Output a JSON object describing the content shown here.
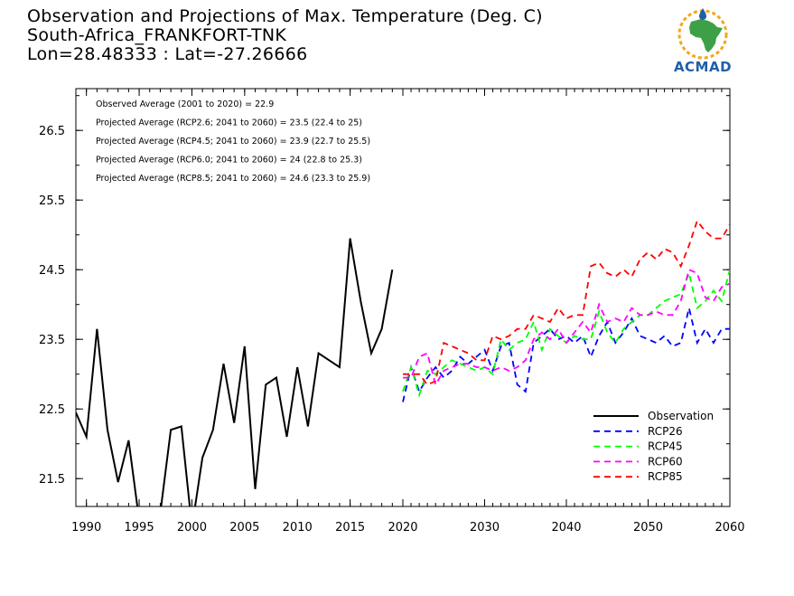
{
  "title": {
    "line1": "Observation and Projections of Max. Temperature (Deg. C)",
    "line2": "South-Africa_FRANKFORT-TNK",
    "line3": "Lon=28.48333 : Lat=-27.26666"
  },
  "logo": {
    "text": "ACMAD",
    "icon": "africa-map-logo-icon"
  },
  "stats": [
    "Observed Average (2001 to 2020) = 22.9",
    "Projected Average (RCP2.6; 2041 to 2060) = 23.5 (22.4 to 25)",
    "Projected Average (RCP4.5; 2041 to 2060) = 23.9 (22.7 to 25.5)",
    "Projected Average (RCP6.0; 2041 to 2060) = 24 (22.8 to 25.3)",
    "Projected Average (RCP8.5; 2041 to 2060) = 24.6 (23.3 to 25.9)"
  ],
  "chart_data": {
    "type": "line",
    "ylim": [
      21.1,
      27.1
    ],
    "yticks": [
      "21.5",
      "22.5",
      "23.5",
      "24.5",
      "25.5",
      "26.5"
    ],
    "grid": false,
    "legend_position": "bottom-right",
    "x_axis_segments": [
      {
        "range": [
          1989,
          2020
        ],
        "ticks": [
          "1990",
          "1995",
          "2000",
          "2005",
          "2010",
          "2015",
          "2020"
        ]
      },
      {
        "range": [
          2020,
          2060
        ],
        "ticks": [
          "2030",
          "2040",
          "2050",
          "2060"
        ]
      }
    ],
    "series": [
      {
        "name": "Observation",
        "color": "#000000",
        "dash": "solid",
        "x": [
          1989,
          1990,
          1991,
          1992,
          1993,
          1994,
          1995,
          1996,
          1997,
          1998,
          1999,
          2000,
          2001,
          2002,
          2003,
          2004,
          2005,
          2006,
          2007,
          2008,
          2009,
          2010,
          2011,
          2012,
          2013,
          2014,
          2015,
          2016,
          2017,
          2018,
          2019
        ],
        "y": [
          22.45,
          22.1,
          23.65,
          22.2,
          21.45,
          22.05,
          20.9,
          20.8,
          21.0,
          22.2,
          22.25,
          20.8,
          21.8,
          22.2,
          23.15,
          22.3,
          23.4,
          21.35,
          22.85,
          22.95,
          22.1,
          23.1,
          22.25,
          23.3,
          23.2,
          23.1,
          24.95,
          24.05,
          23.3,
          23.65,
          24.5
        ]
      },
      {
        "name": "RCP26",
        "color": "#0000ff",
        "dash": "dashed",
        "x": [
          2020,
          2021,
          2022,
          2023,
          2024,
          2025,
          2026,
          2027,
          2028,
          2029,
          2030,
          2031,
          2032,
          2033,
          2034,
          2035,
          2036,
          2037,
          2038,
          2039,
          2040,
          2041,
          2042,
          2043,
          2044,
          2045,
          2046,
          2047,
          2048,
          2049,
          2050,
          2051,
          2052,
          2053,
          2054,
          2055,
          2056,
          2057,
          2058,
          2059,
          2060
        ],
        "y": [
          22.6,
          23.1,
          22.75,
          22.95,
          23.1,
          22.95,
          23.05,
          23.25,
          23.15,
          23.25,
          23.35,
          23.05,
          23.4,
          23.45,
          22.85,
          22.75,
          23.45,
          23.55,
          23.65,
          23.5,
          23.55,
          23.45,
          23.55,
          23.25,
          23.55,
          23.75,
          23.45,
          23.6,
          23.8,
          23.55,
          23.5,
          23.45,
          23.55,
          23.4,
          23.45,
          23.95,
          23.45,
          23.65,
          23.45,
          23.65,
          23.65
        ]
      },
      {
        "name": "RCP45",
        "color": "#00ff00",
        "dash": "dashed",
        "x": [
          2020,
          2021,
          2022,
          2023,
          2024,
          2025,
          2026,
          2027,
          2028,
          2029,
          2030,
          2031,
          2032,
          2033,
          2034,
          2035,
          2036,
          2037,
          2038,
          2039,
          2040,
          2041,
          2042,
          2043,
          2044,
          2045,
          2046,
          2047,
          2048,
          2049,
          2050,
          2051,
          2052,
          2053,
          2054,
          2055,
          2056,
          2057,
          2058,
          2059,
          2060
        ],
        "y": [
          22.75,
          23.1,
          22.7,
          23.05,
          23.0,
          23.1,
          23.2,
          23.15,
          23.1,
          23.05,
          23.1,
          23.0,
          23.5,
          23.35,
          23.45,
          23.5,
          23.75,
          23.35,
          23.65,
          23.55,
          23.45,
          23.55,
          23.5,
          23.5,
          23.9,
          23.6,
          23.45,
          23.65,
          23.75,
          23.85,
          23.85,
          23.95,
          24.05,
          24.1,
          24.15,
          24.45,
          23.95,
          24.05,
          24.2,
          24.05,
          24.5
        ]
      },
      {
        "name": "RCP60",
        "color": "#ff00ff",
        "dash": "dashed",
        "x": [
          2020,
          2021,
          2022,
          2023,
          2024,
          2025,
          2026,
          2027,
          2028,
          2029,
          2030,
          2031,
          2032,
          2033,
          2034,
          2035,
          2036,
          2037,
          2038,
          2039,
          2040,
          2041,
          2042,
          2043,
          2044,
          2045,
          2046,
          2047,
          2048,
          2049,
          2050,
          2051,
          2052,
          2053,
          2054,
          2055,
          2056,
          2057,
          2058,
          2059,
          2060
        ],
        "y": [
          22.95,
          22.95,
          23.25,
          23.3,
          22.85,
          23.05,
          23.1,
          23.15,
          23.15,
          23.1,
          23.1,
          23.05,
          23.1,
          23.05,
          23.1,
          23.2,
          23.5,
          23.6,
          23.5,
          23.65,
          23.45,
          23.6,
          23.75,
          23.6,
          24.0,
          23.75,
          23.8,
          23.75,
          23.95,
          23.85,
          23.85,
          23.9,
          23.85,
          23.85,
          24.05,
          24.5,
          24.45,
          24.1,
          24.05,
          24.25,
          24.3
        ]
      },
      {
        "name": "RCP85",
        "color": "#ff0000",
        "dash": "dashed",
        "x": [
          2020,
          2021,
          2022,
          2023,
          2024,
          2025,
          2026,
          2027,
          2028,
          2029,
          2030,
          2031,
          2032,
          2033,
          2034,
          2035,
          2036,
          2037,
          2038,
          2039,
          2040,
          2041,
          2042,
          2043,
          2044,
          2045,
          2046,
          2047,
          2048,
          2049,
          2050,
          2051,
          2052,
          2053,
          2054,
          2055,
          2056,
          2057,
          2058,
          2059,
          2060
        ],
        "y": [
          23.0,
          23.0,
          23.0,
          22.85,
          22.9,
          23.45,
          23.4,
          23.35,
          23.3,
          23.2,
          23.2,
          23.55,
          23.5,
          23.55,
          23.65,
          23.65,
          23.85,
          23.8,
          23.75,
          23.95,
          23.8,
          23.85,
          23.85,
          24.55,
          24.6,
          24.45,
          24.4,
          24.5,
          24.4,
          24.65,
          24.75,
          24.65,
          24.8,
          24.75,
          24.55,
          24.85,
          25.2,
          25.05,
          24.95,
          24.95,
          25.15
        ]
      }
    ]
  }
}
